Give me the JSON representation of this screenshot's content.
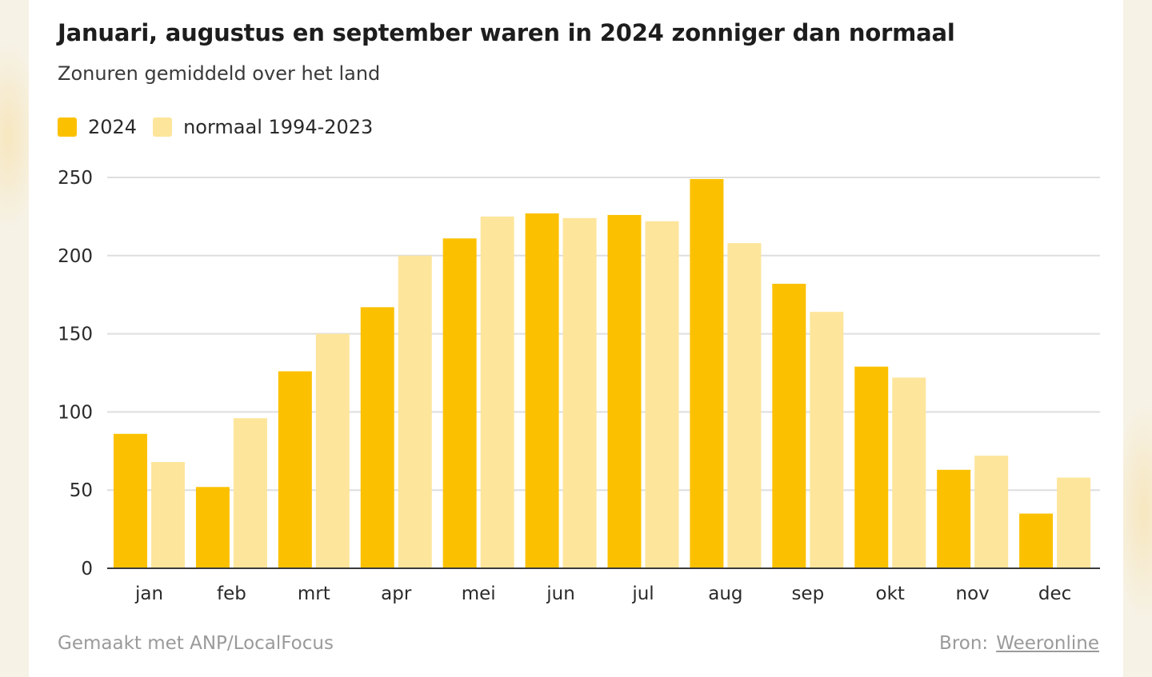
{
  "title": "Januari, augustus en september waren in 2024 zonniger dan normaal",
  "subtitle": "Zonuren gemiddeld over het land",
  "colors": {
    "series_2024": "#fbc100",
    "series_normaal": "#fde59b",
    "grid": "#dedede",
    "axis": "#3a3a3a"
  },
  "footer": {
    "made_with": "Gemaakt met ANP/LocalFocus",
    "source_label": "Bron:",
    "source_name": "Weeronline"
  },
  "chart_data": {
    "type": "bar",
    "title": "Januari, augustus en september waren in 2024 zonniger dan normaal",
    "subtitle": "Zonuren gemiddeld over het land",
    "xlabel": "",
    "ylabel": "",
    "ylim": [
      0,
      250
    ],
    "yticks": [
      0,
      50,
      100,
      150,
      200,
      250
    ],
    "grid": true,
    "legend_position": "top-left",
    "categories": [
      "jan",
      "feb",
      "mrt",
      "apr",
      "mei",
      "jun",
      "jul",
      "aug",
      "sep",
      "okt",
      "nov",
      "dec"
    ],
    "series": [
      {
        "name": "2024",
        "values": [
          86,
          52,
          126,
          167,
          211,
          227,
          226,
          249,
          182,
          129,
          63,
          35
        ]
      },
      {
        "name": "normaal 1994-2023",
        "values": [
          68,
          96,
          150,
          200,
          225,
          224,
          222,
          208,
          164,
          122,
          72,
          58
        ]
      }
    ]
  }
}
